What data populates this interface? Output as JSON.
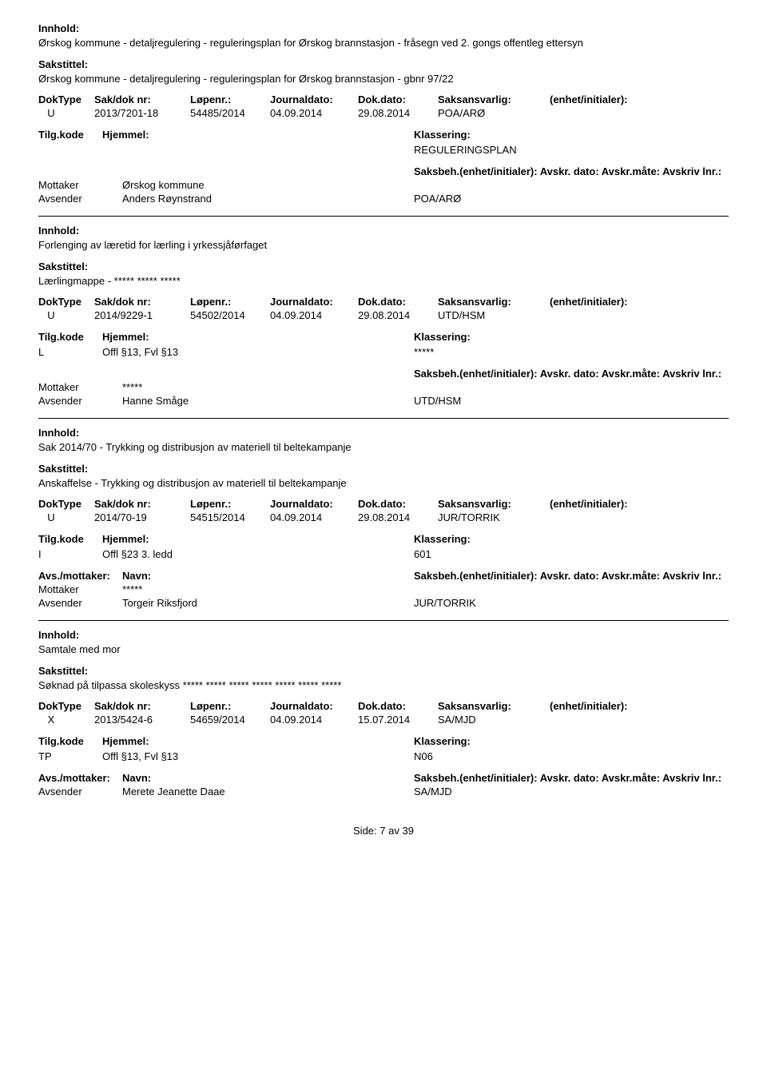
{
  "labels": {
    "innhold": "Innhold:",
    "sakstittel": "Sakstittel:",
    "doktype": "DokType",
    "sakdok": "Sak/dok nr:",
    "lopenr": "Løpenr.:",
    "journaldato": "Journaldato:",
    "dokdato": "Dok.dato:",
    "saksansvarlig": "Saksansvarlig:",
    "enhet": "(enhet/initialer):",
    "tilgkode": "Tilg.kode",
    "hjemmel": "Hjemmel:",
    "klassering": "Klassering:",
    "avsmottaker": "Avs./mottaker:",
    "navn": "Navn:",
    "saksbeh_line": "Saksbeh.(enhet/initialer): Avskr. dato:  Avskr.måte:  Avskriv lnr.:",
    "mottaker": "Mottaker",
    "avsender": "Avsender",
    "side": "Side:",
    "av": "av"
  },
  "page": {
    "current": "7",
    "total": "39"
  },
  "records": [
    {
      "innhold": "Ørskog kommune - detaljregulering - reguleringsplan for Ørskog brannstasjon - fråsegn ved 2. gongs offentleg ettersyn",
      "sakstittel": "Ørskog kommune - detaljregulering - reguleringsplan for Ørskog brannstasjon - gbnr 97/22",
      "doktype": "U",
      "sakdok": "2013/7201-18",
      "lopenr": "54485/2014",
      "journaldato": "04.09.2014",
      "dokdato": "29.08.2014",
      "saksansvarlig": "POA/ARØ",
      "tilgkode": "",
      "hjemmel": "",
      "klassering": "REGULERINGSPLAN",
      "show_party_header": false,
      "parties": [
        {
          "role": "Mottaker",
          "name": "Ørskog kommune",
          "sb": ""
        },
        {
          "role": "Avsender",
          "name": "Anders Røynstrand",
          "sb": "POA/ARØ"
        }
      ]
    },
    {
      "innhold": "Forlenging av læretid for lærling i yrkessjåførfaget",
      "sakstittel": "Lærlingmappe - ***** ***** *****",
      "doktype": "U",
      "sakdok": "2014/9229-1",
      "lopenr": "54502/2014",
      "journaldato": "04.09.2014",
      "dokdato": "29.08.2014",
      "saksansvarlig": "UTD/HSM",
      "tilgkode": "L",
      "hjemmel": "Offl §13, Fvl §13",
      "klassering": "*****",
      "show_party_header": false,
      "parties": [
        {
          "role": "Mottaker",
          "name": "*****",
          "sb": ""
        },
        {
          "role": "Avsender",
          "name": "Hanne Småge",
          "sb": "UTD/HSM"
        }
      ]
    },
    {
      "innhold": "Sak 2014/70 - Trykking og distribusjon av materiell til beltekampanje",
      "sakstittel": "Anskaffelse - Trykking og distribusjon av materiell til beltekampanje",
      "doktype": "U",
      "sakdok": "2014/70-19",
      "lopenr": "54515/2014",
      "journaldato": "04.09.2014",
      "dokdato": "29.08.2014",
      "saksansvarlig": "JUR/TORRIK",
      "tilgkode": "I",
      "hjemmel": "Offl §23 3. ledd",
      "klassering": "601",
      "show_party_header": true,
      "parties": [
        {
          "role": "Mottaker",
          "name": "*****",
          "sb": ""
        },
        {
          "role": "Avsender",
          "name": "Torgeir Riksfjord",
          "sb": "JUR/TORRIK"
        }
      ]
    },
    {
      "innhold": "Samtale med mor",
      "sakstittel": "Søknad på tilpassa skoleskyss ***** ***** ***** ***** ***** ***** *****",
      "doktype": "X",
      "sakdok": "2013/5424-6",
      "lopenr": "54659/2014",
      "journaldato": "04.09.2014",
      "dokdato": "15.07.2014",
      "saksansvarlig": "SA/MJD",
      "tilgkode": "TP",
      "hjemmel": "Offl §13, Fvl §13",
      "klassering": "N06",
      "show_party_header": true,
      "parties": [
        {
          "role": "Avsender",
          "name": "Merete Jeanette Daae",
          "sb": "SA/MJD"
        }
      ]
    }
  ]
}
